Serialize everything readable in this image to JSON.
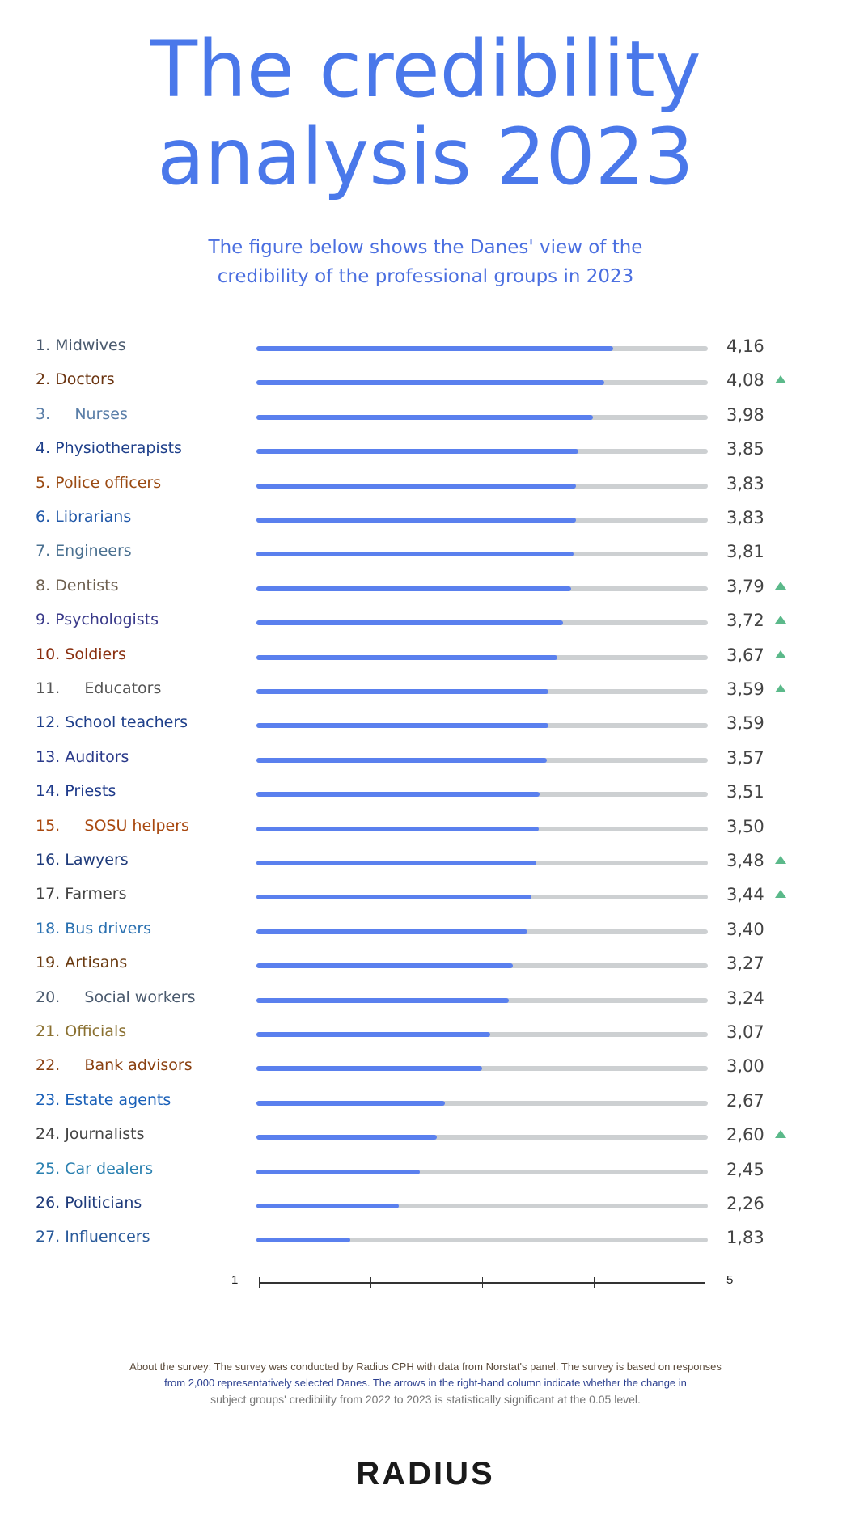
{
  "title_line1": "The credibility",
  "title_line2": "analysis 2023",
  "subtitle_line1": "The figure below shows the Danes' view of the",
  "subtitle_line2": "credibility of the professional groups in 2023",
  "chart_data": {
    "type": "bar",
    "orientation": "horizontal",
    "xlim": [
      1,
      5
    ],
    "axis_ticks": [
      "1",
      "5"
    ],
    "bar_color": "#5a80ee",
    "track_color": "#cdd0d2",
    "arrow_color": "#5bb98a",
    "rows": [
      {
        "label": "1. Midwives",
        "value": 4.16,
        "display": "4,16",
        "arrow": false,
        "color": "#4a5a6e"
      },
      {
        "label": "2. Doctors",
        "value": 4.08,
        "display": "4,08",
        "arrow": true,
        "color": "#6b3410"
      },
      {
        "label": "3.     Nurses",
        "value": 3.98,
        "display": "3,98",
        "arrow": false,
        "color": "#5a7ea8"
      },
      {
        "label": "4. Physiotherapists",
        "value": 3.85,
        "display": "3,85",
        "arrow": false,
        "color": "#1e3f8a"
      },
      {
        "label": "5. Police officers",
        "value": 3.83,
        "display": "3,83",
        "arrow": false,
        "color": "#9a4a12"
      },
      {
        "label": "6. Librarians",
        "value": 3.83,
        "display": "3,83",
        "arrow": false,
        "color": "#2158a8"
      },
      {
        "label": "7. Engineers",
        "value": 3.81,
        "display": "3,81",
        "arrow": false,
        "color": "#4a7090"
      },
      {
        "label": "8. Dentists",
        "value": 3.79,
        "display": "3,79",
        "arrow": true,
        "color": "#6e6050"
      },
      {
        "label": "9. Psychologists",
        "value": 3.72,
        "display": "3,72",
        "arrow": true,
        "color": "#3a3a8a"
      },
      {
        "label": "10. Soldiers",
        "value": 3.67,
        "display": "3,67",
        "arrow": true,
        "color": "#8a3010"
      },
      {
        "label": "11.     Educators",
        "value": 3.59,
        "display": "3,59",
        "arrow": true,
        "color": "#555"
      },
      {
        "label": "12. School teachers",
        "value": 3.59,
        "display": "3,59",
        "arrow": false,
        "color": "#1e3f8a"
      },
      {
        "label": "13. Auditors",
        "value": 3.57,
        "display": "3,57",
        "arrow": false,
        "color": "#2a3a8a"
      },
      {
        "label": "14. Priests",
        "value": 3.51,
        "display": "3,51",
        "arrow": false,
        "color": "#1e3a8a"
      },
      {
        "label": "15.     SOSU helpers",
        "value": 3.5,
        "display": "3,50",
        "arrow": false,
        "color": "#a8480f"
      },
      {
        "label": "16. Lawyers",
        "value": 3.48,
        "display": "3,48",
        "arrow": true,
        "color": "#1e3a7a"
      },
      {
        "label": "17. Farmers",
        "value": 3.44,
        "display": "3,44",
        "arrow": true,
        "color": "#444"
      },
      {
        "label": "18. Bus drivers",
        "value": 3.4,
        "display": "3,40",
        "arrow": false,
        "color": "#2a70b0"
      },
      {
        "label": "19. Artisans",
        "value": 3.27,
        "display": "3,27",
        "arrow": false,
        "color": "#6a3a10"
      },
      {
        "label": "20.     Social workers",
        "value": 3.24,
        "display": "3,24",
        "arrow": false,
        "color": "#4a5a6e"
      },
      {
        "label": "21. Officials",
        "value": 3.07,
        "display": "3,07",
        "arrow": false,
        "color": "#8a7030"
      },
      {
        "label": "22.     Bank advisors",
        "value": 3.0,
        "display": "3,00",
        "arrow": false,
        "color": "#8a4010"
      },
      {
        "label": "23. Estate agents",
        "value": 2.67,
        "display": "2,67",
        "arrow": false,
        "color": "#1a60b8"
      },
      {
        "label": "24. Journalists",
        "value": 2.6,
        "display": "2,60",
        "arrow": true,
        "color": "#444"
      },
      {
        "label": "25. Car dealers",
        "value": 2.45,
        "display": "2,45",
        "arrow": false,
        "color": "#2a80b0"
      },
      {
        "label": "26. Politicians",
        "value": 2.26,
        "display": "2,26",
        "arrow": false,
        "color": "#1e3a7a"
      },
      {
        "label": "27. Influencers",
        "value": 1.83,
        "display": "1,83",
        "arrow": false,
        "color": "#2a5a9a"
      }
    ]
  },
  "note_line1": "About the survey: The survey was conducted by Radius CPH with data from Norstat's panel. The survey is based on responses",
  "note_line2": "from 2,000 representatively selected Danes. The arrows in the right-hand column indicate whether the change in",
  "note_line3": "subject groups' credibility from 2022 to 2023 is statistically significant at the 0.05 level.",
  "logo": "RADIUS"
}
